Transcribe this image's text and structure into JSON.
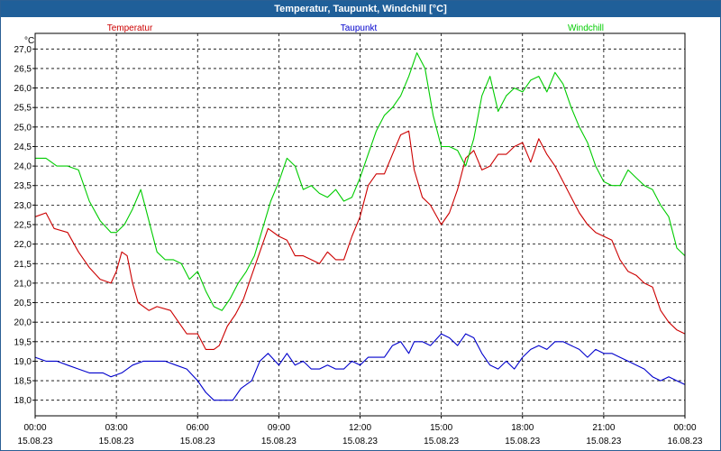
{
  "window": {
    "title": "Temperatur, Taupunkt, Windchill [°C]"
  },
  "chart_data": {
    "type": "line",
    "title": "Temperatur, Taupunkt, Windchill [°C]",
    "ylabel": "°C",
    "ylim": [
      17.6,
      27.4
    ],
    "yticks": [
      "27,0",
      "26,5",
      "26,0",
      "25,5",
      "25,0",
      "24,5",
      "24,0",
      "23,5",
      "23,0",
      "22,5",
      "22,0",
      "21,5",
      "21,0",
      "20,5",
      "20,0",
      "19,5",
      "19,0",
      "18,5",
      "18,0"
    ],
    "xlim": [
      0,
      24
    ],
    "xticks": [
      {
        "time": "00:00",
        "date": "15.08.23"
      },
      {
        "time": "03:00",
        "date": "15.08.23"
      },
      {
        "time": "06:00",
        "date": "15.08.23"
      },
      {
        "time": "09:00",
        "date": "15.08.23"
      },
      {
        "time": "12:00",
        "date": "15.08.23"
      },
      {
        "time": "15:00",
        "date": "15.08.23"
      },
      {
        "time": "18:00",
        "date": "15.08.23"
      },
      {
        "time": "21:00",
        "date": "15.08.23"
      },
      {
        "time": "00:00",
        "date": "16.08.23"
      }
    ],
    "grid": true,
    "legend_position": "top",
    "series": [
      {
        "name": "Temperatur",
        "color": "#cc0000",
        "points": [
          [
            0,
            22.7
          ],
          [
            0.4,
            22.8
          ],
          [
            0.7,
            22.4
          ],
          [
            1.2,
            22.3
          ],
          [
            1.6,
            21.8
          ],
          [
            2.0,
            21.4
          ],
          [
            2.4,
            21.1
          ],
          [
            2.8,
            21.0
          ],
          [
            3.0,
            21.3
          ],
          [
            3.2,
            21.8
          ],
          [
            3.4,
            21.7
          ],
          [
            3.6,
            21.0
          ],
          [
            3.8,
            20.5
          ],
          [
            4.2,
            20.3
          ],
          [
            4.5,
            20.4
          ],
          [
            5.0,
            20.3
          ],
          [
            5.3,
            20.0
          ],
          [
            5.6,
            19.7
          ],
          [
            6.0,
            19.7
          ],
          [
            6.3,
            19.3
          ],
          [
            6.6,
            19.3
          ],
          [
            6.8,
            19.4
          ],
          [
            7.1,
            19.9
          ],
          [
            7.4,
            20.2
          ],
          [
            7.7,
            20.6
          ],
          [
            8.0,
            21.2
          ],
          [
            8.3,
            21.8
          ],
          [
            8.6,
            22.4
          ],
          [
            9.0,
            22.2
          ],
          [
            9.3,
            22.1
          ],
          [
            9.6,
            21.7
          ],
          [
            9.9,
            21.7
          ],
          [
            10.2,
            21.6
          ],
          [
            10.5,
            21.5
          ],
          [
            10.8,
            21.8
          ],
          [
            11.1,
            21.6
          ],
          [
            11.4,
            21.6
          ],
          [
            11.7,
            22.2
          ],
          [
            12.0,
            22.7
          ],
          [
            12.3,
            23.5
          ],
          [
            12.6,
            23.8
          ],
          [
            12.9,
            23.8
          ],
          [
            13.2,
            24.3
          ],
          [
            13.5,
            24.8
          ],
          [
            13.8,
            24.9
          ],
          [
            14.0,
            23.9
          ],
          [
            14.3,
            23.2
          ],
          [
            14.6,
            23.0
          ],
          [
            15.0,
            22.5
          ],
          [
            15.3,
            22.8
          ],
          [
            15.6,
            23.4
          ],
          [
            15.9,
            24.2
          ],
          [
            16.2,
            24.4
          ],
          [
            16.5,
            23.9
          ],
          [
            16.8,
            24.0
          ],
          [
            17.1,
            24.3
          ],
          [
            17.4,
            24.3
          ],
          [
            17.7,
            24.5
          ],
          [
            18.0,
            24.6
          ],
          [
            18.3,
            24.1
          ],
          [
            18.6,
            24.7
          ],
          [
            18.9,
            24.3
          ],
          [
            19.2,
            24.0
          ],
          [
            19.5,
            23.6
          ],
          [
            19.8,
            23.2
          ],
          [
            20.1,
            22.8
          ],
          [
            20.4,
            22.5
          ],
          [
            20.7,
            22.3
          ],
          [
            21.0,
            22.2
          ],
          [
            21.3,
            22.1
          ],
          [
            21.6,
            21.6
          ],
          [
            21.9,
            21.3
          ],
          [
            22.2,
            21.2
          ],
          [
            22.5,
            21.0
          ],
          [
            22.8,
            20.9
          ],
          [
            23.1,
            20.3
          ],
          [
            23.4,
            20.0
          ],
          [
            23.7,
            19.8
          ],
          [
            24.0,
            19.7
          ]
        ]
      },
      {
        "name": "Taupunkt",
        "color": "#0000cc",
        "points": [
          [
            0,
            19.1
          ],
          [
            0.4,
            19.0
          ],
          [
            0.8,
            19.0
          ],
          [
            1.2,
            18.9
          ],
          [
            1.6,
            18.8
          ],
          [
            2.0,
            18.7
          ],
          [
            2.5,
            18.7
          ],
          [
            2.8,
            18.6
          ],
          [
            3.2,
            18.7
          ],
          [
            3.6,
            18.9
          ],
          [
            4.0,
            19.0
          ],
          [
            4.4,
            19.0
          ],
          [
            4.8,
            19.0
          ],
          [
            5.2,
            18.9
          ],
          [
            5.6,
            18.8
          ],
          [
            6.0,
            18.5
          ],
          [
            6.3,
            18.2
          ],
          [
            6.6,
            18.0
          ],
          [
            7.0,
            18.0
          ],
          [
            7.3,
            18.0
          ],
          [
            7.6,
            18.3
          ],
          [
            8.0,
            18.5
          ],
          [
            8.3,
            19.0
          ],
          [
            8.6,
            19.2
          ],
          [
            9.0,
            18.9
          ],
          [
            9.3,
            19.2
          ],
          [
            9.6,
            18.9
          ],
          [
            9.9,
            19.0
          ],
          [
            10.2,
            18.8
          ],
          [
            10.5,
            18.8
          ],
          [
            10.8,
            18.9
          ],
          [
            11.1,
            18.8
          ],
          [
            11.4,
            18.8
          ],
          [
            11.7,
            19.0
          ],
          [
            12.0,
            18.9
          ],
          [
            12.3,
            19.1
          ],
          [
            12.6,
            19.1
          ],
          [
            12.9,
            19.1
          ],
          [
            13.2,
            19.4
          ],
          [
            13.5,
            19.5
          ],
          [
            13.8,
            19.2
          ],
          [
            14.0,
            19.5
          ],
          [
            14.3,
            19.5
          ],
          [
            14.6,
            19.4
          ],
          [
            15.0,
            19.7
          ],
          [
            15.3,
            19.6
          ],
          [
            15.6,
            19.4
          ],
          [
            15.9,
            19.7
          ],
          [
            16.2,
            19.6
          ],
          [
            16.5,
            19.2
          ],
          [
            16.8,
            18.9
          ],
          [
            17.1,
            18.8
          ],
          [
            17.4,
            19.0
          ],
          [
            17.7,
            18.8
          ],
          [
            18.0,
            19.1
          ],
          [
            18.3,
            19.3
          ],
          [
            18.6,
            19.4
          ],
          [
            18.9,
            19.3
          ],
          [
            19.2,
            19.5
          ],
          [
            19.5,
            19.5
          ],
          [
            19.8,
            19.4
          ],
          [
            20.1,
            19.3
          ],
          [
            20.4,
            19.1
          ],
          [
            20.7,
            19.3
          ],
          [
            21.0,
            19.2
          ],
          [
            21.3,
            19.2
          ],
          [
            21.6,
            19.1
          ],
          [
            21.9,
            19.0
          ],
          [
            22.2,
            18.9
          ],
          [
            22.5,
            18.8
          ],
          [
            22.8,
            18.6
          ],
          [
            23.1,
            18.5
          ],
          [
            23.4,
            18.6
          ],
          [
            23.7,
            18.5
          ],
          [
            24.0,
            18.4
          ]
        ]
      },
      {
        "name": "Windchill",
        "color": "#00cc00",
        "points": [
          [
            0,
            24.2
          ],
          [
            0.4,
            24.2
          ],
          [
            0.8,
            24.0
          ],
          [
            1.2,
            24.0
          ],
          [
            1.6,
            23.9
          ],
          [
            2.0,
            23.1
          ],
          [
            2.4,
            22.6
          ],
          [
            2.8,
            22.3
          ],
          [
            3.0,
            22.3
          ],
          [
            3.3,
            22.5
          ],
          [
            3.6,
            22.9
          ],
          [
            3.9,
            23.4
          ],
          [
            4.2,
            22.6
          ],
          [
            4.5,
            21.8
          ],
          [
            4.8,
            21.6
          ],
          [
            5.1,
            21.6
          ],
          [
            5.4,
            21.5
          ],
          [
            5.7,
            21.1
          ],
          [
            6.0,
            21.3
          ],
          [
            6.3,
            20.8
          ],
          [
            6.6,
            20.4
          ],
          [
            6.9,
            20.3
          ],
          [
            7.2,
            20.6
          ],
          [
            7.5,
            21.0
          ],
          [
            7.8,
            21.3
          ],
          [
            8.1,
            21.7
          ],
          [
            8.4,
            22.4
          ],
          [
            8.7,
            23.1
          ],
          [
            9.0,
            23.6
          ],
          [
            9.3,
            24.2
          ],
          [
            9.6,
            24.0
          ],
          [
            9.9,
            23.4
          ],
          [
            10.2,
            23.5
          ],
          [
            10.5,
            23.3
          ],
          [
            10.8,
            23.2
          ],
          [
            11.1,
            23.4
          ],
          [
            11.4,
            23.1
          ],
          [
            11.7,
            23.2
          ],
          [
            12.0,
            23.7
          ],
          [
            12.3,
            24.3
          ],
          [
            12.6,
            24.9
          ],
          [
            12.9,
            25.3
          ],
          [
            13.2,
            25.5
          ],
          [
            13.5,
            25.8
          ],
          [
            13.8,
            26.3
          ],
          [
            14.1,
            26.9
          ],
          [
            14.4,
            26.5
          ],
          [
            14.7,
            25.3
          ],
          [
            15.0,
            24.5
          ],
          [
            15.3,
            24.5
          ],
          [
            15.6,
            24.4
          ],
          [
            15.9,
            24.0
          ],
          [
            16.2,
            24.7
          ],
          [
            16.5,
            25.8
          ],
          [
            16.8,
            26.3
          ],
          [
            17.1,
            25.4
          ],
          [
            17.4,
            25.8
          ],
          [
            17.7,
            26.0
          ],
          [
            18.0,
            25.9
          ],
          [
            18.3,
            26.2
          ],
          [
            18.6,
            26.3
          ],
          [
            18.9,
            25.9
          ],
          [
            19.2,
            26.4
          ],
          [
            19.5,
            26.1
          ],
          [
            19.8,
            25.5
          ],
          [
            20.1,
            25.0
          ],
          [
            20.4,
            24.6
          ],
          [
            20.7,
            24.0
          ],
          [
            21.0,
            23.6
          ],
          [
            21.3,
            23.5
          ],
          [
            21.6,
            23.5
          ],
          [
            21.9,
            23.9
          ],
          [
            22.2,
            23.7
          ],
          [
            22.5,
            23.5
          ],
          [
            22.8,
            23.4
          ],
          [
            23.1,
            23.0
          ],
          [
            23.4,
            22.7
          ],
          [
            23.7,
            21.9
          ],
          [
            24.0,
            21.7
          ]
        ]
      }
    ]
  }
}
